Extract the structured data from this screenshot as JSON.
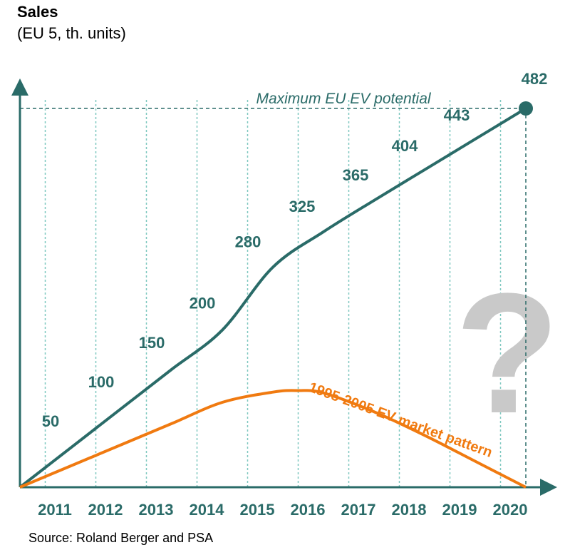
{
  "header": {
    "title": "Sales",
    "subtitle": "(EU 5, th. units)"
  },
  "footer": {
    "source": "Source: Roland Berger and PSA"
  },
  "annotations": {
    "max_potential": "Maximum EU EV potential",
    "pattern_label": "1995-2005 EV market pattern",
    "question_mark": "?"
  },
  "colors": {
    "main_series": "#2a6b68",
    "pattern_series": "#f07a10",
    "grid": "#7fc8c0",
    "question_mark": "#c9c9c9"
  },
  "chart_data": {
    "type": "line",
    "title": "Sales",
    "subtitle": "(EU 5, th. units)",
    "categories": [
      "2011",
      "2012",
      "2013",
      "2014",
      "2015",
      "2016",
      "2017",
      "2018",
      "2019",
      "2020"
    ],
    "series": [
      {
        "values": [
          50,
          100,
          150,
          200,
          280,
          325,
          365,
          404,
          443,
          482
        ],
        "labeled": true
      },
      {
        "name": "1995-2005 EV market pattern",
        "x": [
          2010.0,
          2011.0,
          2012.0,
          2013.0,
          2014.0,
          2015.0,
          2015.5,
          2016.0,
          2017.0,
          2018.0,
          2019.0,
          2020.0
        ],
        "values": [
          0,
          27,
          54,
          81,
          108,
          121,
          123,
          120,
          96,
          66,
          33,
          0
        ]
      }
    ],
    "origin": 2010,
    "max_potential_value": 482,
    "ylim": [
      0,
      482
    ],
    "grid": "vertical dashed",
    "source": "Source: Roland Berger and PSA"
  }
}
